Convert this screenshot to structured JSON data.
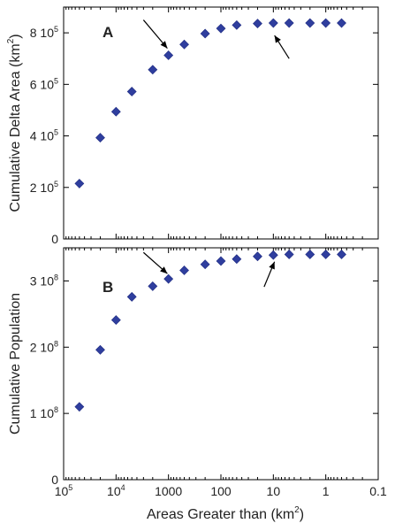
{
  "chart_data": [
    {
      "type": "scatter",
      "panel_label": "A",
      "ylabel_text": "Cumulative Delta Area (km",
      "ylabel_sup": "2",
      "ylabel_close": ")",
      "x_scale": "log",
      "x_reversed": true,
      "xlim": [
        100000,
        0.1
      ],
      "ylim": [
        0,
        900000
      ],
      "y_ticks": [
        {
          "value": 0,
          "mantissa": "0",
          "exp": ""
        },
        {
          "value": 200000,
          "mantissa": "2 10",
          "exp": "5"
        },
        {
          "value": 400000,
          "mantissa": "4 10",
          "exp": "5"
        },
        {
          "value": 600000,
          "mantissa": "6 10",
          "exp": "5"
        },
        {
          "value": 800000,
          "mantissa": "8 10",
          "exp": "5"
        }
      ],
      "x": [
        50000,
        20000,
        10000,
        5000,
        2000,
        1000,
        500,
        200,
        100,
        50,
        20,
        10,
        5,
        2,
        1,
        0.5
      ],
      "y": [
        215000,
        393000,
        494000,
        572000,
        657000,
        713000,
        755000,
        797000,
        817000,
        830000,
        836000,
        838000,
        838000,
        838000,
        838000,
        838000
      ],
      "annotations": [
        {
          "from_x": 3000,
          "from_y": 850000,
          "to_x": 1050,
          "to_y": 740000,
          "label": "arrow-left"
        },
        {
          "from_x": 5,
          "from_y": 700000,
          "to_x": 9.5,
          "to_y": 790000,
          "label": "arrow-right"
        }
      ]
    },
    {
      "type": "scatter",
      "panel_label": "B",
      "ylabel_text": "Cumulative Population",
      "ylabel_sup": "",
      "ylabel_close": "",
      "x_scale": "log",
      "x_reversed": true,
      "xlim": [
        100000,
        0.1
      ],
      "ylim": [
        0,
        350000000
      ],
      "y_ticks": [
        {
          "value": 0,
          "mantissa": "0",
          "exp": ""
        },
        {
          "value": 100000000,
          "mantissa": "1 10",
          "exp": "8"
        },
        {
          "value": 200000000,
          "mantissa": "2 10",
          "exp": "8"
        },
        {
          "value": 300000000,
          "mantissa": "3 10",
          "exp": "8"
        }
      ],
      "x": [
        50000,
        20000,
        10000,
        5000,
        2000,
        1000,
        500,
        200,
        100,
        50,
        20,
        10,
        5,
        2,
        1,
        0.5
      ],
      "y": [
        110000000,
        196000000,
        241000000,
        276000000,
        292000000,
        303000000,
        316000000,
        325000000,
        330000000,
        333000000,
        337000000,
        339000000,
        340000000,
        340000000,
        340000000,
        340000000
      ],
      "annotations": [
        {
          "from_x": 3000,
          "from_y": 343000000,
          "to_x": 1050,
          "to_y": 311000000,
          "label": "arrow-left"
        },
        {
          "from_x": 15,
          "from_y": 291000000,
          "to_x": 9.5,
          "to_y": 329000000,
          "label": "arrow-right"
        }
      ]
    }
  ],
  "x_axis": {
    "label_text": "Areas Greater than (km",
    "label_sup": "2",
    "label_close": ")",
    "ticks": [
      {
        "value": 100000,
        "base": "10",
        "exp": "5"
      },
      {
        "value": 10000,
        "base": "10",
        "exp": "4"
      },
      {
        "value": 1000,
        "base": "1000",
        "exp": ""
      },
      {
        "value": 100,
        "base": "100",
        "exp": ""
      },
      {
        "value": 10,
        "base": "10",
        "exp": ""
      },
      {
        "value": 1,
        "base": "1",
        "exp": ""
      },
      {
        "value": 0.1,
        "base": "0.1",
        "exp": ""
      }
    ]
  },
  "colors": {
    "marker": "#2f3e9e",
    "axis": "#000000"
  }
}
